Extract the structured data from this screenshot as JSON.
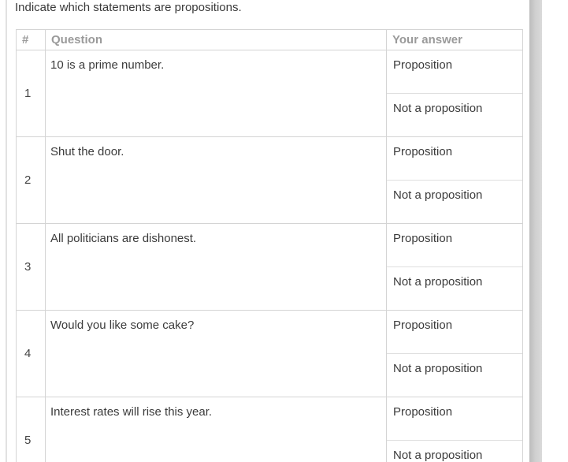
{
  "page": {
    "instruction": "Indicate which statements are propositions."
  },
  "table": {
    "headers": {
      "index": "#",
      "question": "Question",
      "answer": "Your answer"
    },
    "options": [
      "Proposition",
      "Not a proposition"
    ],
    "rows": [
      {
        "num": "1",
        "question": "10 is a prime number."
      },
      {
        "num": "2",
        "question": "Shut the door."
      },
      {
        "num": "3",
        "question": "All politicians are dishonest."
      },
      {
        "num": "4",
        "question": "Would you like some cake?"
      },
      {
        "num": "5",
        "question": "Interest rates will rise this year."
      }
    ]
  },
  "colors": {
    "table_border": "#d4d4d4",
    "option_divider": "#dfdfdf",
    "header_text": "#9a9a9a",
    "body_text": "#3b3b3b",
    "scrollbar_gray": "#c9c9c9"
  }
}
